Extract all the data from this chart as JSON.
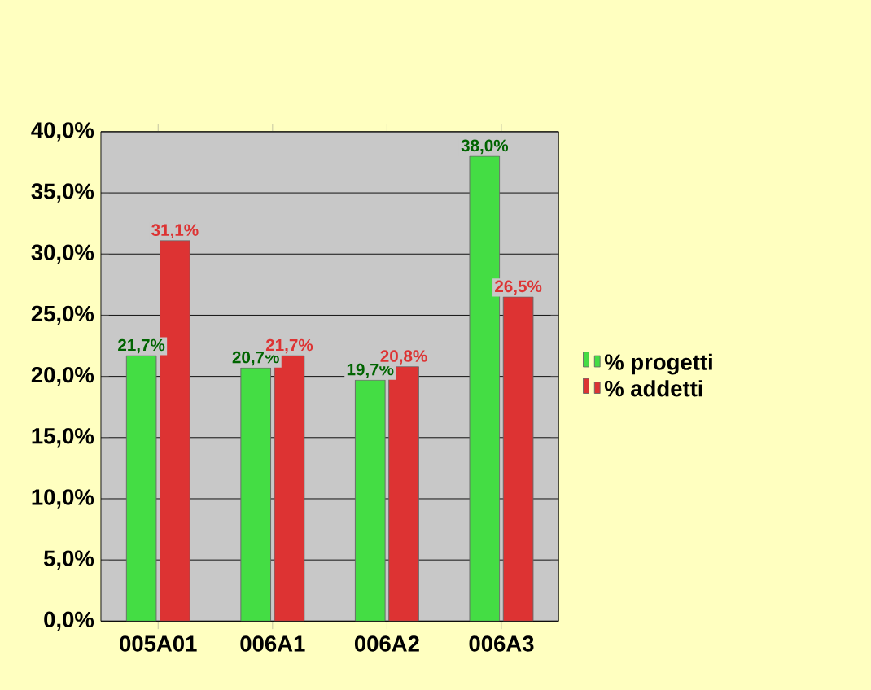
{
  "chart_data": {
    "type": "bar",
    "categories": [
      "005A01",
      "006A1",
      "006A2",
      "006A3"
    ],
    "series": [
      {
        "name": "% progetti",
        "color": "#44dd44",
        "values": [
          21.7,
          20.7,
          19.7,
          38.0
        ],
        "value_labels": [
          "21,7%",
          "20,7%",
          "19,7%",
          "38,0%"
        ]
      },
      {
        "name": "% addetti",
        "color": "#dd3333",
        "values": [
          31.1,
          21.7,
          20.8,
          26.5
        ],
        "value_labels": [
          "31,1%",
          "21,7%",
          "20,8%",
          "26,5%"
        ]
      }
    ],
    "ylim": [
      0,
      40
    ],
    "yticks": [
      {
        "value": 0,
        "label": "0,0%"
      },
      {
        "value": 5,
        "label": "5,0%"
      },
      {
        "value": 10,
        "label": "10,0%"
      },
      {
        "value": 15,
        "label": "15,0%"
      },
      {
        "value": 20,
        "label": "20,0%"
      },
      {
        "value": 25,
        "label": "25,0%"
      },
      {
        "value": 30,
        "label": "30,0%"
      },
      {
        "value": 35,
        "label": "35,0%"
      },
      {
        "value": 40,
        "label": "40,0%"
      }
    ],
    "grid": "y",
    "legend": "right"
  }
}
